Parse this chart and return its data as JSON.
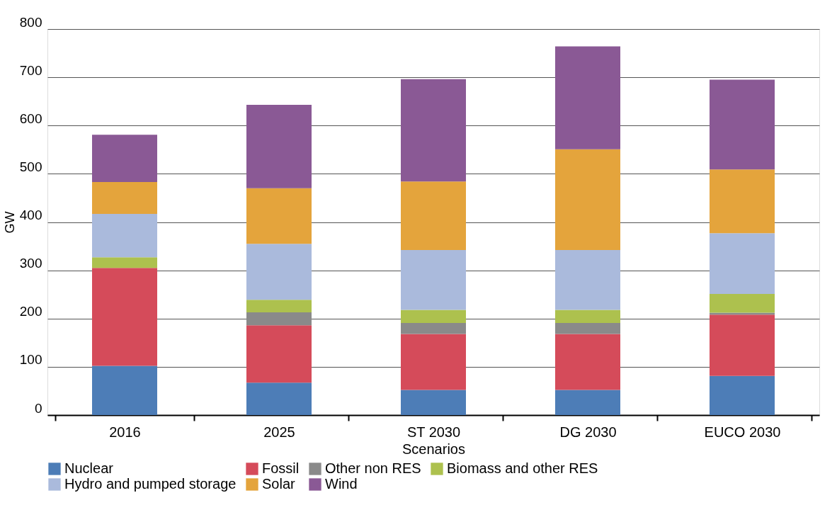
{
  "chart_data": {
    "type": "bar",
    "stacked": true,
    "xlabel": "Scenarios",
    "ylabel": "GW",
    "categories": [
      "2016",
      "2025",
      "ST 2030",
      "DG 2030",
      "EUCO 2030"
    ],
    "series": [
      {
        "name": "Nuclear",
        "color": "#4d7db7",
        "values": [
          102,
          67,
          52,
          52,
          81
        ]
      },
      {
        "name": "Fossil",
        "color": "#d54b5a",
        "values": [
          203,
          119,
          116,
          116,
          127
        ]
      },
      {
        "name": "Other non RES",
        "color": "#8a8a8a",
        "values": [
          0,
          27,
          23,
          23,
          4
        ]
      },
      {
        "name": "Biomass and other RES",
        "color": "#adc14e",
        "values": [
          22,
          26,
          27,
          27,
          39
        ]
      },
      {
        "name": "Hydro and pumped storage",
        "color": "#aabadc",
        "values": [
          90,
          116,
          124,
          124,
          126
        ]
      },
      {
        "name": "Solar",
        "color": "#e4a43c",
        "values": [
          66,
          115,
          142,
          209,
          132
        ]
      },
      {
        "name": "Wind",
        "color": "#8a5995",
        "values": [
          98,
          173,
          212,
          213,
          186
        ]
      }
    ],
    "ylim": [
      0,
      800
    ],
    "yticks": [
      0,
      100,
      200,
      300,
      400,
      500,
      600,
      700,
      800
    ],
    "grid": "y",
    "legend": "bottom"
  }
}
